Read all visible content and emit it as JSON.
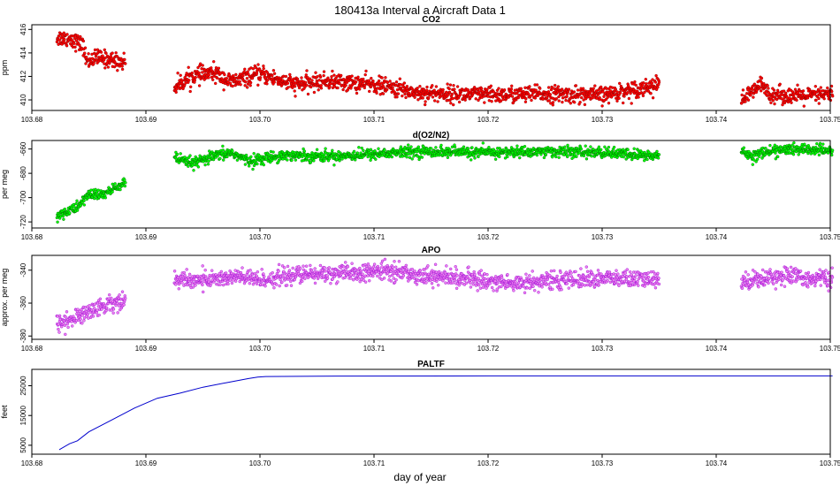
{
  "figure": {
    "title": "180413a   Interval a Aircraft Data 1",
    "xlabel": "day of year"
  },
  "chart_data": [
    {
      "type": "scatter",
      "title": "CO2",
      "ylabel": "ppm",
      "color": "#ff0000",
      "edge_color": "#8b0000",
      "xlim": [
        103.68,
        103.75
      ],
      "ylim": [
        409.1,
        416.4
      ],
      "yticks": [
        410,
        412,
        414,
        416
      ],
      "xticks": [
        103.68,
        103.69,
        103.7,
        103.71,
        103.72,
        103.73,
        103.74,
        103.75
      ],
      "xtick_labels": [
        "103.68",
        "103.69",
        "103.70",
        "103.71",
        "103.72",
        "103.73",
        "103.74",
        "103.75"
      ],
      "series": [
        {
          "noise": 0.35,
          "segments": [
            {
              "x": [
                103.6822,
                103.6835,
                103.6845,
                103.6848,
                103.6858,
                103.687,
                103.6882
              ],
              "y": [
                415.3,
                415.2,
                414.6,
                413.3,
                413.6,
                413.4,
                413.2
              ]
            },
            {
              "x": [
                103.6925,
                103.694,
                103.696,
                103.6975,
                103.6985,
                103.7,
                103.703,
                103.706,
                103.71,
                103.714,
                103.72,
                103.725,
                103.73,
                103.735
              ],
              "y": [
                411.1,
                412.0,
                412.3,
                411.5,
                411.8,
                412.2,
                411.3,
                411.6,
                411.3,
                410.6,
                410.4,
                410.5,
                410.4,
                411.3
              ]
            },
            {
              "x": [
                103.7422,
                103.7432,
                103.7438,
                103.7448,
                103.747,
                103.749,
                103.7502
              ],
              "y": [
                410.1,
                410.6,
                411.3,
                410.5,
                410.3,
                410.4,
                410.5
              ]
            }
          ]
        }
      ]
    },
    {
      "type": "scatter",
      "title": "d(O2/N2)",
      "ylabel": "per meg",
      "color": "#00ff00",
      "edge_color": "#006400",
      "xlim": [
        103.68,
        103.75
      ],
      "ylim": [
        -725,
        -653
      ],
      "yticks": [
        -720,
        -700,
        -680,
        -660
      ],
      "xticks": [
        103.68,
        103.69,
        103.7,
        103.71,
        103.72,
        103.73,
        103.74,
        103.75
      ],
      "xtick_labels": [
        "103.68",
        "103.69",
        "103.70",
        "103.71",
        "103.72",
        "103.73",
        "103.74",
        "103.75"
      ],
      "series": [
        {
          "noise": 2.2,
          "segments": [
            {
              "x": [
                103.6822,
                103.683,
                103.684,
                103.685,
                103.686,
                103.687,
                103.6882
              ],
              "y": [
                -715,
                -712,
                -708,
                -697,
                -698,
                -694,
                -687
              ]
            },
            {
              "x": [
                103.6925,
                103.6935,
                103.6945,
                103.696,
                103.6975,
                103.699,
                103.702,
                103.706,
                103.71,
                103.714,
                103.72,
                103.725,
                103.73,
                103.735
              ],
              "y": [
                -667,
                -671,
                -671,
                -666,
                -663,
                -670,
                -665,
                -666,
                -664,
                -662,
                -663,
                -662,
                -663,
                -666
              ]
            },
            {
              "x": [
                103.7422,
                103.7432,
                103.744,
                103.7455,
                103.7475,
                103.749,
                103.7502
              ],
              "y": [
                -661,
                -666,
                -663,
                -661,
                -660,
                -661,
                -662
              ]
            }
          ]
        }
      ]
    },
    {
      "type": "scatter",
      "title": "APO",
      "ylabel": "approx. per meg",
      "color": "#ee82ee",
      "edge_color": "#9400d3",
      "xlim": [
        103.68,
        103.75
      ],
      "ylim": [
        -382,
        -331
      ],
      "yticks": [
        -380,
        -360,
        -340
      ],
      "xticks": [
        103.68,
        103.69,
        103.7,
        103.71,
        103.72,
        103.73,
        103.74,
        103.75
      ],
      "xtick_labels": [
        "103.68",
        "103.69",
        "103.70",
        "103.71",
        "103.72",
        "103.73",
        "103.74",
        "103.75"
      ],
      "series": [
        {
          "noise": 2.6,
          "segments": [
            {
              "x": [
                103.6822,
                103.6835,
                103.685,
                103.6865,
                103.6882
              ],
              "y": [
                -372,
                -370,
                -365,
                -361,
                -358
              ]
            },
            {
              "x": [
                103.6925,
                103.695,
                103.698,
                103.7,
                103.703,
                103.706,
                103.709,
                103.711,
                103.714,
                103.718,
                103.722,
                103.726,
                103.73,
                103.735
              ],
              "y": [
                -346,
                -346,
                -344,
                -346,
                -343,
                -342,
                -342,
                -340,
                -343,
                -345,
                -348,
                -346,
                -345,
                -346
              ]
            },
            {
              "x": [
                103.7422,
                103.744,
                103.746,
                103.748,
                103.7502
              ],
              "y": [
                -347,
                -345,
                -343,
                -345,
                -345
              ]
            }
          ]
        }
      ]
    },
    {
      "type": "line",
      "title": "PALTF",
      "ylabel": "feet",
      "color": "#0000cd",
      "xlim": [
        103.68,
        103.75
      ],
      "ylim": [
        2000,
        30500
      ],
      "yticks": [
        5000,
        15000,
        25000
      ],
      "xticks": [
        103.68,
        103.69,
        103.7,
        103.71,
        103.72,
        103.73,
        103.74,
        103.75
      ],
      "xtick_labels": [
        "103.68",
        "103.69",
        "103.70",
        "103.71",
        "103.72",
        "103.73",
        "103.74",
        "103.75"
      ],
      "series": [
        {
          "x": [
            103.6824,
            103.6833,
            103.684,
            103.685,
            103.687,
            103.689,
            103.691,
            103.693,
            103.695,
            103.697,
            103.699,
            103.6998,
            103.7005,
            103.705,
            103.72,
            103.735,
            103.7502
          ],
          "y": [
            3500,
            5500,
            6500,
            9500,
            13500,
            17500,
            20800,
            22500,
            24500,
            26000,
            27400,
            27900,
            28100,
            28200,
            28300,
            28300,
            28300
          ]
        }
      ]
    }
  ]
}
